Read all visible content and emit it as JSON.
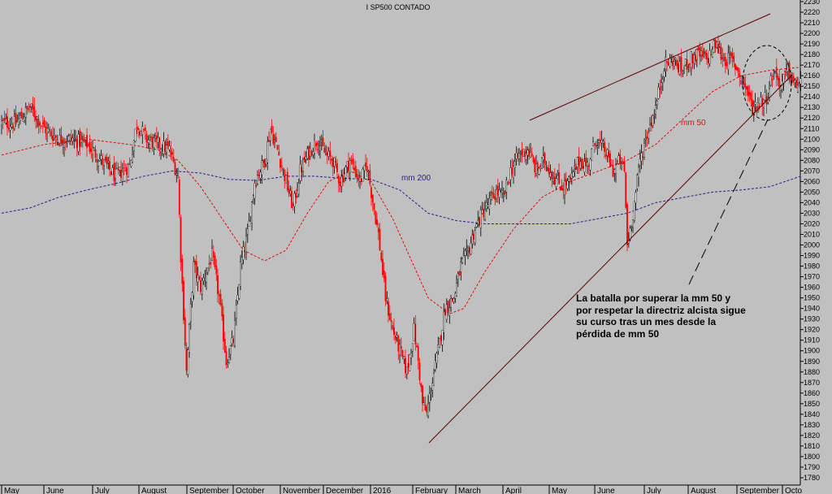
{
  "chart_data": {
    "type": "candlestick",
    "title": "I SP500 CONTADO",
    "x_labels": [
      "May",
      "June",
      "July",
      "August",
      "September",
      "October",
      "November",
      "December",
      "2016",
      "February",
      "March",
      "April",
      "May",
      "June",
      "July",
      "August",
      "September",
      "Octo"
    ],
    "y_ticks": [
      1780,
      1790,
      1800,
      1810,
      1820,
      1830,
      1840,
      1850,
      1860,
      1870,
      1880,
      1890,
      1900,
      1910,
      1920,
      1930,
      1940,
      1950,
      1960,
      1970,
      1980,
      1990,
      2000,
      2010,
      2020,
      2030,
      2040,
      2050,
      2060,
      2070,
      2080,
      2090,
      2100,
      2110,
      2120,
      2130,
      2140,
      2150,
      2160,
      2170,
      2180,
      2190,
      2200,
      2210,
      2220,
      2230
    ],
    "ylim": [
      1780,
      2230
    ],
    "close_anchors": [
      [
        0,
        2115
      ],
      [
        10,
        2115
      ],
      [
        20,
        2130
      ],
      [
        30,
        2110
      ],
      [
        40,
        2100
      ],
      [
        50,
        2100
      ],
      [
        60,
        2095
      ],
      [
        70,
        2080
      ],
      [
        80,
        2065
      ],
      [
        90,
        2075
      ],
      [
        95,
        2115
      ],
      [
        102,
        2100
      ],
      [
        110,
        2095
      ],
      [
        118,
        2090
      ],
      [
        124,
        2065
      ],
      [
        126,
        1990
      ],
      [
        130,
        1880
      ],
      [
        135,
        1980
      ],
      [
        140,
        1960
      ],
      [
        148,
        1990
      ],
      [
        153,
        1950
      ],
      [
        158,
        1890
      ],
      [
        163,
        1910
      ],
      [
        168,
        1980
      ],
      [
        173,
        2010
      ],
      [
        178,
        2060
      ],
      [
        185,
        2080
      ],
      [
        189,
        2110
      ],
      [
        194,
        2090
      ],
      [
        200,
        2060
      ],
      [
        205,
        2035
      ],
      [
        210,
        2070
      ],
      [
        215,
        2085
      ],
      [
        222,
        2100
      ],
      [
        228,
        2085
      ],
      [
        233,
        2080
      ],
      [
        238,
        2060
      ],
      [
        245,
        2080
      ],
      [
        252,
        2060
      ],
      [
        257,
        2075
      ],
      [
        260,
        2050
      ],
      [
        265,
        2010
      ],
      [
        270,
        1950
      ],
      [
        275,
        1920
      ],
      [
        280,
        1900
      ],
      [
        285,
        1880
      ],
      [
        290,
        1920
      ],
      [
        293,
        1890
      ],
      [
        296,
        1850
      ],
      [
        299,
        1840
      ],
      [
        302,
        1865
      ],
      [
        307,
        1900
      ],
      [
        312,
        1940
      ],
      [
        318,
        1950
      ],
      [
        323,
        1980
      ],
      [
        327,
        1990
      ],
      [
        333,
        2015
      ],
      [
        338,
        2030
      ],
      [
        343,
        2040
      ],
      [
        348,
        2050
      ],
      [
        353,
        2045
      ],
      [
        358,
        2070
      ],
      [
        364,
        2085
      ],
      [
        370,
        2090
      ],
      [
        376,
        2070
      ],
      [
        382,
        2080
      ],
      [
        388,
        2065
      ],
      [
        394,
        2055
      ],
      [
        400,
        2060
      ],
      [
        406,
        2080
      ],
      [
        412,
        2075
      ],
      [
        418,
        2100
      ],
      [
        424,
        2090
      ],
      [
        430,
        2070
      ],
      [
        435,
        2080
      ],
      [
        438,
        2070
      ],
      [
        440,
        2000
      ],
      [
        444,
        2030
      ],
      [
        449,
        2080
      ],
      [
        454,
        2105
      ],
      [
        460,
        2130
      ],
      [
        466,
        2170
      ],
      [
        472,
        2175
      ],
      [
        478,
        2165
      ],
      [
        484,
        2175
      ],
      [
        490,
        2180
      ],
      [
        496,
        2175
      ],
      [
        502,
        2190
      ],
      [
        508,
        2175
      ],
      [
        513,
        2175
      ],
      [
        518,
        2165
      ],
      [
        523,
        2150
      ],
      [
        528,
        2130
      ],
      [
        533,
        2135
      ],
      [
        538,
        2140
      ],
      [
        543,
        2165
      ],
      [
        548,
        2150
      ],
      [
        553,
        2165
      ],
      [
        558,
        2150
      ],
      [
        562,
        2155
      ]
    ],
    "mm50": {
      "label": "mm 50",
      "color": "#dd1111",
      "points": [
        [
          0,
          2085
        ],
        [
          30,
          2095
        ],
        [
          60,
          2100
        ],
        [
          90,
          2095
        ],
        [
          110,
          2090
        ],
        [
          124,
          2080
        ],
        [
          140,
          2055
        ],
        [
          155,
          2025
        ],
        [
          170,
          1995
        ],
        [
          185,
          1985
        ],
        [
          200,
          1995
        ],
        [
          215,
          2030
        ],
        [
          230,
          2060
        ],
        [
          245,
          2070
        ],
        [
          260,
          2060
        ],
        [
          275,
          2025
        ],
        [
          290,
          1980
        ],
        [
          300,
          1950
        ],
        [
          315,
          1935
        ],
        [
          325,
          1940
        ],
        [
          340,
          1975
        ],
        [
          360,
          2015
        ],
        [
          380,
          2045
        ],
        [
          400,
          2060
        ],
        [
          420,
          2070
        ],
        [
          440,
          2080
        ],
        [
          460,
          2095
        ],
        [
          480,
          2120
        ],
        [
          500,
          2145
        ],
        [
          520,
          2160
        ],
        [
          540,
          2165
        ],
        [
          562,
          2168
        ]
      ]
    },
    "mm200": {
      "label": "mm 200",
      "color": "#2a1f8c",
      "points": [
        [
          0,
          2030
        ],
        [
          20,
          2035
        ],
        [
          40,
          2045
        ],
        [
          60,
          2052
        ],
        [
          80,
          2058
        ],
        [
          100,
          2065
        ],
        [
          120,
          2070
        ],
        [
          140,
          2068
        ],
        [
          160,
          2062
        ],
        [
          180,
          2061
        ],
        [
          200,
          2065
        ],
        [
          220,
          2065
        ],
        [
          240,
          2063
        ],
        [
          260,
          2062
        ],
        [
          280,
          2052
        ],
        [
          300,
          2030
        ],
        [
          320,
          2023
        ],
        [
          340,
          2020
        ],
        [
          360,
          2020
        ],
        [
          380,
          2020
        ],
        [
          400,
          2020
        ],
        [
          420,
          2025
        ],
        [
          440,
          2030
        ],
        [
          460,
          2040
        ],
        [
          480,
          2045
        ],
        [
          500,
          2050
        ],
        [
          520,
          2052
        ],
        [
          540,
          2055
        ],
        [
          562,
          2065
        ]
      ]
    },
    "annotation": {
      "lines": [
        "La batalla por superar la mm 50 y",
        "por respetar la directriz alcista sigue",
        "su curso tras un mes desde la",
        "pérdida de mm 50"
      ]
    }
  },
  "colors": {
    "background": "#c0c0c0",
    "bull_candle": "#ffffff",
    "bear_candle": "#ff0000",
    "wick": "#000000",
    "trendline": "#5a0000"
  }
}
